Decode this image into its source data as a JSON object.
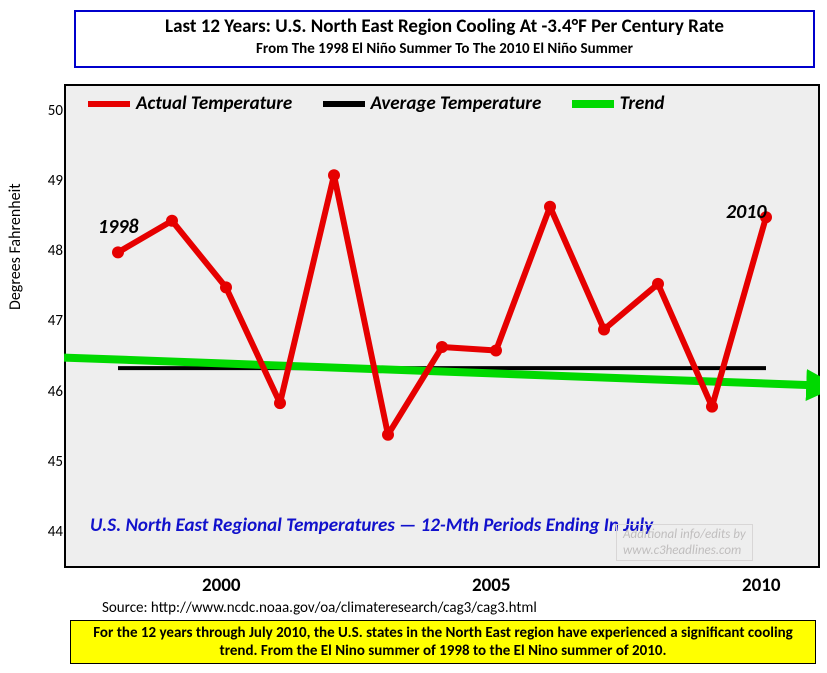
{
  "chart": {
    "type": "line",
    "title_main": "Last 12 Years: U.S. North East Region Cooling At -3.4°F Per Century Rate",
    "title_sub": "From The 1998 El Niño Summer To The 2010 El Niño Summer",
    "title_fontsize_main": 19,
    "title_fontsize_sub": 15,
    "title_border_color": "#0000cc",
    "background_color": "#eeeeee",
    "plot_border_color": "#000000",
    "y_axis": {
      "label": "Degrees Fahrenheit",
      "min": 43.5,
      "max": 50.4,
      "ticks": [
        44,
        45,
        46,
        47,
        48,
        49,
        50
      ],
      "tick_fontsize": 15
    },
    "x_axis": {
      "min": 1997,
      "max": 2011,
      "visible_ticks": [
        2000,
        2005,
        2010
      ],
      "tick_fontsize": 19
    },
    "series": {
      "actual": {
        "label": "Actual Temperature",
        "color": "#e60000",
        "line_width": 6,
        "marker": "circle",
        "marker_size": 6,
        "years": [
          1998,
          1999,
          2000,
          2001,
          2002,
          2003,
          2004,
          2005,
          2006,
          2007,
          2008,
          2009,
          2010
        ],
        "values": [
          48.0,
          48.45,
          47.5,
          45.85,
          49.1,
          45.4,
          46.65,
          46.6,
          48.65,
          46.9,
          47.55,
          45.8,
          48.5
        ]
      },
      "average": {
        "label": "Average Temperature",
        "color": "#000000",
        "line_width": 4,
        "y_value": 46.35,
        "x_start": 1998,
        "x_end": 2010
      },
      "trend": {
        "label": "Trend",
        "color": "#00d900",
        "line_width": 8,
        "has_arrow": true,
        "y_start": 46.5,
        "y_end": 46.1,
        "x_start": 1997,
        "x_end": 2011.3
      }
    },
    "annotations": {
      "label_1998": "1998",
      "label_2010": "2010",
      "annotation_fontsize": 20,
      "blue_caption": "U.S. North East Regional Temperatures — 12-Mth Periods Ending In July",
      "blue_caption_color": "#1111cc",
      "blue_caption_fontsize": 19,
      "watermark_line1": "Additional info/edits by",
      "watermark_line2": "www.c3headlines.com",
      "watermark_color": "#c0bebe"
    },
    "legend_fontsize": 19,
    "source": "Source:   http://www.ncdc.noaa.gov/oa/climateresearch/cag3/cag3.html",
    "source_fontsize": 15,
    "footer": "For the 12 years through July 2010, the U.S. states in the North East region have experienced a significant cooling trend. From the El Nino summer of 1998 to the El Nino summer of 2010.",
    "footer_bg": "#ffff00",
    "footer_fontsize": 15
  }
}
